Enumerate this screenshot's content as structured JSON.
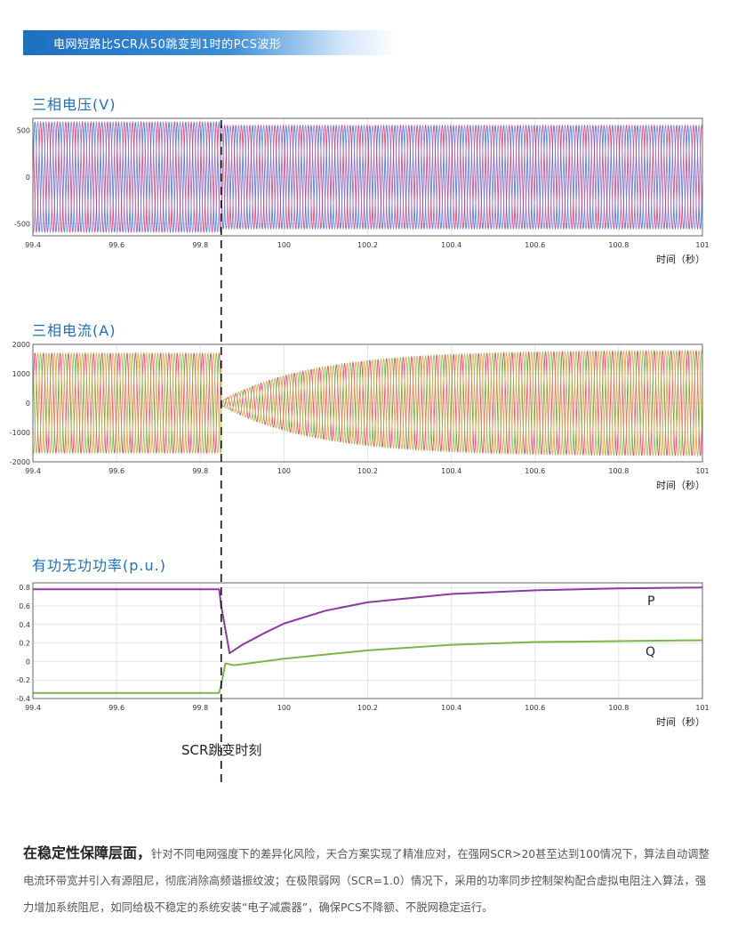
{
  "banner": {
    "title": "电网短路比SCR从50跳变到1时的PCS波形"
  },
  "chart_data": [
    {
      "type": "line",
      "title": "三相电压(V)",
      "xlabel": "时间（秒）",
      "xlim": [
        99.4,
        101
      ],
      "xticks": [
        "99.4",
        "99.6",
        "99.8",
        "100",
        "100.2",
        "100.4",
        "100.6",
        "100.8",
        "101"
      ],
      "ylim": [
        -630,
        630
      ],
      "yticks": [
        {
          "v": 500,
          "label": "500"
        },
        {
          "v": 0,
          "label": "0"
        },
        {
          "v": -500,
          "label": "-500"
        }
      ],
      "grid": true,
      "event_x": 99.85,
      "series": [
        {
          "color": "#2a6fd6",
          "amplitude_before": 590,
          "amplitude_after": 555
        },
        {
          "color": "#d0336b",
          "amplitude_before": 590,
          "amplitude_after": 555
        },
        {
          "color": "#9a72c8",
          "amplitude_before": 590,
          "amplitude_after": 555
        }
      ]
    },
    {
      "type": "line",
      "title": "三相电流(A)",
      "xlabel": "时间（秒）",
      "xlim": [
        99.4,
        101
      ],
      "xticks": [
        "99.4",
        "99.6",
        "99.8",
        "100",
        "100.2",
        "100.4",
        "100.6",
        "100.8",
        "101"
      ],
      "ylim": [
        -2000,
        2000
      ],
      "yticks": [
        {
          "v": 2000,
          "label": "2000"
        },
        {
          "v": 1000,
          "label": "1000"
        },
        {
          "v": 0,
          "label": "0"
        },
        {
          "v": -1000,
          "label": "-1000"
        },
        {
          "v": -2000,
          "label": "-2000"
        }
      ],
      "grid": true,
      "event_x": 99.85,
      "series": [
        {
          "color": "#e02a5a",
          "amplitude_before": 1700,
          "amplitude_after_min": 80,
          "amplitude_final": 1800
        },
        {
          "color": "#7bc043",
          "amplitude_before": 1700,
          "amplitude_after_min": 80,
          "amplitude_final": 1800
        },
        {
          "color": "#e0a030",
          "amplitude_before": 1700,
          "amplitude_after_min": 80,
          "amplitude_final": 1800
        }
      ]
    },
    {
      "type": "line",
      "title": "有功无功功率(p.u.)",
      "xlabel": "时间（秒）",
      "xlim": [
        99.4,
        101
      ],
      "xticks": [
        "99.4",
        "99.6",
        "99.8",
        "100",
        "100.2",
        "100.4",
        "100.6",
        "100.8",
        "101"
      ],
      "ylim": [
        -0.4,
        0.85
      ],
      "yticks": [
        {
          "v": 0.8,
          "label": "0.8"
        },
        {
          "v": 0.6,
          "label": "0.6"
        },
        {
          "v": 0.4,
          "label": "0.4"
        },
        {
          "v": 0.2,
          "label": "0.2"
        },
        {
          "v": 0,
          "label": "0"
        },
        {
          "v": -0.2,
          "label": "-0.2"
        },
        {
          "v": -0.4,
          "label": "-0.4"
        }
      ],
      "grid": true,
      "event_x": 99.85,
      "series": [
        {
          "name": "P",
          "color": "#8b3a9e",
          "x": [
            99.4,
            99.845,
            99.85,
            99.87,
            99.9,
            99.95,
            100,
            100.1,
            100.2,
            100.4,
            100.6,
            100.8,
            101
          ],
          "y": [
            0.78,
            0.78,
            0.6,
            0.09,
            0.18,
            0.3,
            0.41,
            0.55,
            0.64,
            0.73,
            0.77,
            0.79,
            0.8
          ]
        },
        {
          "name": "Q",
          "color": "#7ab648",
          "x": [
            99.4,
            99.845,
            99.85,
            99.86,
            99.88,
            99.9,
            100,
            100.2,
            100.4,
            100.6,
            100.8,
            101
          ],
          "y": [
            -0.34,
            -0.34,
            -0.25,
            -0.02,
            -0.04,
            -0.03,
            0.03,
            0.12,
            0.18,
            0.21,
            0.22,
            0.23
          ]
        }
      ]
    }
  ],
  "event_label": "SCR跳变时刻",
  "paragraph": {
    "lead": "在稳定性保障层面，",
    "body": "针对不同电网强度下的差异化风险，天合方案实现了精准应对，在强网SCR>20甚至达到100情况下，算法自动调整电流环带宽并引入有源阻尼，彻底消除高频谐振纹波；在极限弱网（SCR=1.0）情况下，采用的功率同步控制架构配合虚拟电阻注入算法，强力增加系统阻尼，如同给极不稳定的系统安装“电子减震器”，确保PCS不降额、不脱网稳定运行。"
  }
}
